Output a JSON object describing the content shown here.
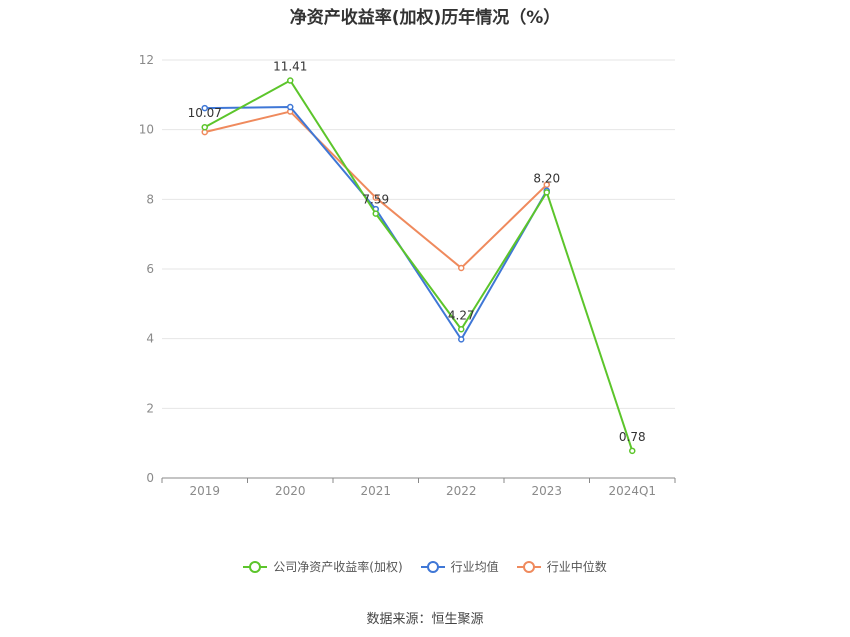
{
  "chart_data": {
    "type": "line",
    "title": "净资产收益率(加权)历年情况（%）",
    "categories": [
      "2019",
      "2020",
      "2021",
      "2022",
      "2023",
      "2024Q1"
    ],
    "ylim": [
      0,
      12
    ],
    "yticks": [
      0,
      2,
      4,
      6,
      8,
      10,
      12
    ],
    "grid": true,
    "legend_position": "bottom",
    "series": [
      {
        "name": "公司净资产收益率(加权)",
        "color": "#5cc52b",
        "values": [
          10.07,
          11.41,
          7.59,
          4.27,
          8.2,
          0.78
        ],
        "labels": [
          "10.07",
          "11.41",
          "7.59",
          "4.27",
          "8.20",
          "0.78"
        ]
      },
      {
        "name": "行业均值",
        "color": "#3f77d6",
        "values": [
          10.62,
          10.65,
          7.72,
          3.98,
          8.25,
          null
        ]
      },
      {
        "name": "行业中位数",
        "color": "#ef8a5d",
        "values": [
          9.93,
          10.52,
          8.05,
          6.03,
          8.42,
          null
        ]
      }
    ]
  },
  "source": "数据来源：恒生聚源"
}
